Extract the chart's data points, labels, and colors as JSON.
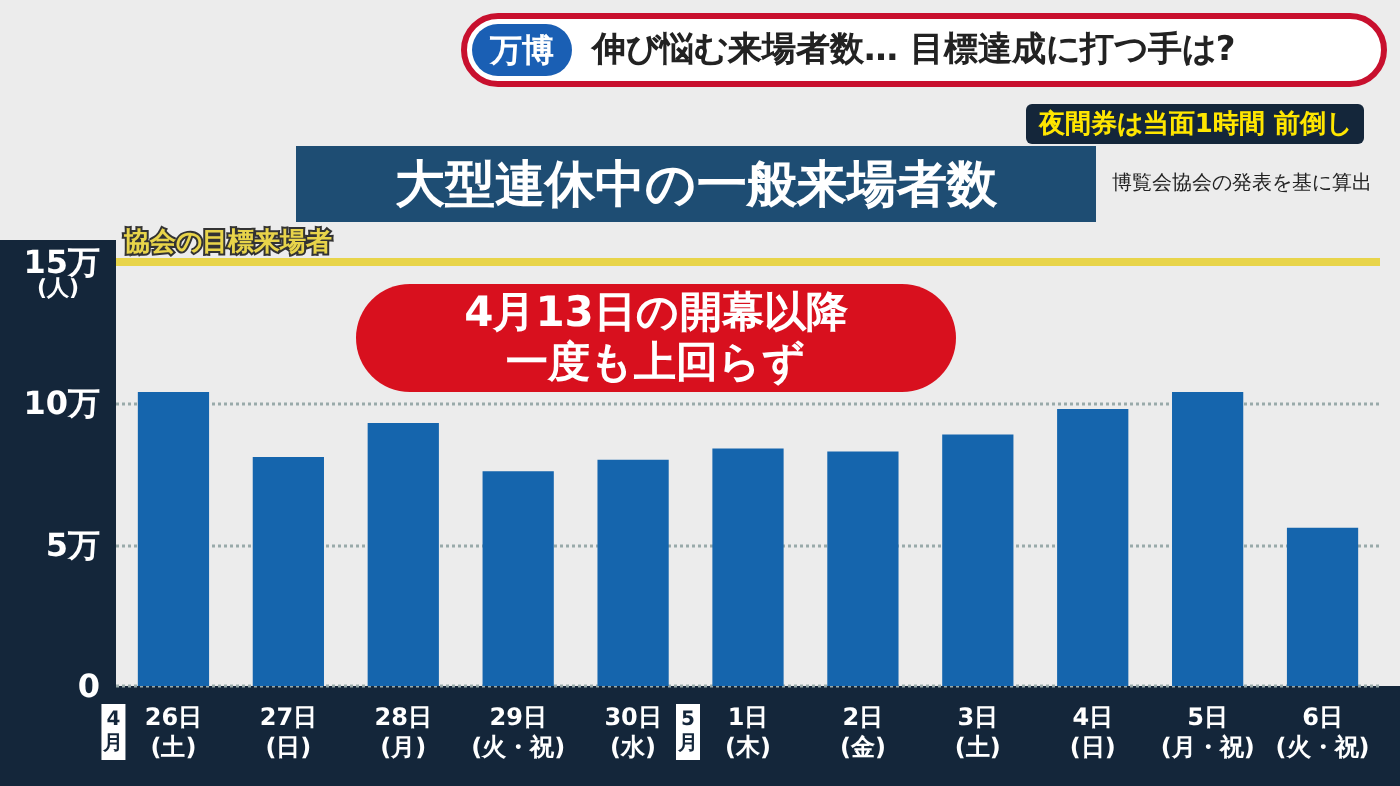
{
  "chart_data": {
    "type": "bar",
    "title": "大型連休中の一般来場者数",
    "ylabel": "(人)",
    "categories": [
      "26日(土)",
      "27日(日)",
      "28日(月)",
      "29日(火・祝)",
      "30日(水)",
      "1日(木)",
      "2日(金)",
      "3日(土)",
      "4日(日)",
      "5日(月・祝)",
      "6日(火・祝)"
    ],
    "values": [
      10.4,
      8.1,
      9.3,
      7.6,
      8.0,
      8.4,
      8.3,
      8.9,
      9.8,
      10.4,
      5.6
    ],
    "color": "#1565ad",
    "ylim": [
      0,
      15
    ],
    "yticks": [
      0,
      {
        "value": 5,
        "label": "5万"
      },
      {
        "value": 10,
        "label": "10万"
      },
      {
        "value": 15,
        "label": "15万"
      }
    ],
    "grid": "y",
    "ref_lines": [
      {
        "axis": "y",
        "value": 15,
        "label": "協会の目標来場者",
        "color": "#e8d44a"
      }
    ],
    "annotations": [
      "万博",
      "伸び悩む来場者数… 目標達成に打つ手は?",
      "夜間券は当面1時間 前倒し",
      "博覧会協会の発表を基に算出",
      "4月13日の開幕以降一度も上回らず",
      "4月",
      "5月"
    ]
  }
}
